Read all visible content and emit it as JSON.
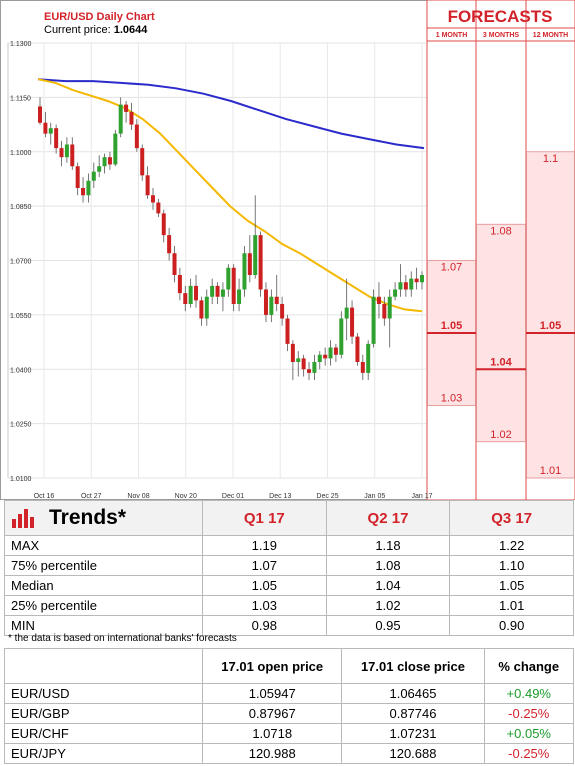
{
  "chart_data": {
    "type": "candlestick",
    "title": "EUR/USD Daily Chart",
    "current_price_label": "Current price:",
    "current_price": "1.0644",
    "y_ticks": [
      "1.1300",
      "1.1150",
      "1.1000",
      "1.0850",
      "1.0700",
      "1.0550",
      "1.0400",
      "1.0250",
      "1.0100"
    ],
    "y_tick_values": [
      1.13,
      1.115,
      1.1,
      1.085,
      1.07,
      1.055,
      1.04,
      1.025,
      1.01
    ],
    "ylim": [
      1.01,
      1.13
    ],
    "x_ticks": [
      "Oct 16",
      "Oct 27",
      "Nov 08",
      "Nov 20",
      "Dec 01",
      "Dec 13",
      "Dec 25",
      "Jan 05",
      "Jan 17"
    ],
    "candles": [
      [
        1.1125,
        1.115,
        1.1075,
        1.108
      ],
      [
        1.108,
        1.111,
        1.104,
        1.105
      ],
      [
        1.105,
        1.108,
        1.102,
        1.1065
      ],
      [
        1.1065,
        1.1075,
        1.0995,
        1.101
      ],
      [
        1.101,
        1.103,
        1.096,
        1.0985
      ],
      [
        1.0985,
        1.104,
        1.097,
        1.102
      ],
      [
        1.102,
        1.104,
        1.095,
        1.096
      ],
      [
        1.096,
        1.097,
        1.088,
        1.09
      ],
      [
        1.09,
        1.093,
        1.086,
        1.088
      ],
      [
        1.088,
        1.094,
        1.086,
        1.092
      ],
      [
        1.092,
        1.097,
        1.09,
        1.0945
      ],
      [
        1.0945,
        1.099,
        1.093,
        1.096
      ],
      [
        1.096,
        1.0995,
        1.094,
        1.0985
      ],
      [
        1.0985,
        1.1,
        1.095,
        1.0965
      ],
      [
        1.0965,
        1.106,
        1.096,
        1.105
      ],
      [
        1.105,
        1.115,
        1.104,
        1.113
      ],
      [
        1.113,
        1.114,
        1.108,
        1.111
      ],
      [
        1.111,
        1.1135,
        1.106,
        1.1075
      ],
      [
        1.1075,
        1.109,
        1.1,
        1.101
      ],
      [
        1.101,
        1.102,
        1.092,
        1.0935
      ],
      [
        1.0935,
        1.096,
        1.087,
        1.088
      ],
      [
        1.088,
        1.09,
        1.084,
        1.086
      ],
      [
        1.086,
        1.087,
        1.082,
        1.083
      ],
      [
        1.083,
        1.084,
        1.075,
        1.077
      ],
      [
        1.077,
        1.079,
        1.07,
        1.072
      ],
      [
        1.072,
        1.074,
        1.064,
        1.066
      ],
      [
        1.066,
        1.068,
        1.059,
        1.061
      ],
      [
        1.061,
        1.063,
        1.056,
        1.058
      ],
      [
        1.058,
        1.065,
        1.057,
        1.063
      ],
      [
        1.063,
        1.066,
        1.057,
        1.059
      ],
      [
        1.059,
        1.06,
        1.052,
        1.054
      ],
      [
        1.054,
        1.062,
        1.052,
        1.06
      ],
      [
        1.06,
        1.065,
        1.058,
        1.063
      ],
      [
        1.063,
        1.064,
        1.058,
        1.06
      ],
      [
        1.06,
        1.064,
        1.056,
        1.062
      ],
      [
        1.062,
        1.069,
        1.06,
        1.068
      ],
      [
        1.068,
        1.069,
        1.056,
        1.058
      ],
      [
        1.058,
        1.065,
        1.056,
        1.062
      ],
      [
        1.062,
        1.074,
        1.06,
        1.072
      ],
      [
        1.072,
        1.077,
        1.064,
        1.066
      ],
      [
        1.066,
        1.088,
        1.065,
        1.077
      ],
      [
        1.077,
        1.078,
        1.06,
        1.062
      ],
      [
        1.062,
        1.064,
        1.053,
        1.055
      ],
      [
        1.055,
        1.062,
        1.053,
        1.06
      ],
      [
        1.06,
        1.066,
        1.056,
        1.058
      ],
      [
        1.058,
        1.06,
        1.052,
        1.054
      ],
      [
        1.054,
        1.055,
        1.045,
        1.047
      ],
      [
        1.047,
        1.048,
        1.037,
        1.042
      ],
      [
        1.042,
        1.045,
        1.038,
        1.043
      ],
      [
        1.043,
        1.044,
        1.038,
        1.04
      ],
      [
        1.04,
        1.042,
        1.037,
        1.039
      ],
      [
        1.039,
        1.044,
        1.037,
        1.042
      ],
      [
        1.042,
        1.045,
        1.04,
        1.044
      ],
      [
        1.044,
        1.046,
        1.041,
        1.043
      ],
      [
        1.043,
        1.048,
        1.041,
        1.046
      ],
      [
        1.046,
        1.047,
        1.042,
        1.044
      ],
      [
        1.044,
        1.056,
        1.043,
        1.054
      ],
      [
        1.054,
        1.065,
        1.048,
        1.057
      ],
      [
        1.057,
        1.059,
        1.047,
        1.049
      ],
      [
        1.049,
        1.05,
        1.041,
        1.042
      ],
      [
        1.042,
        1.044,
        1.037,
        1.039
      ],
      [
        1.039,
        1.048,
        1.037,
        1.047
      ],
      [
        1.047,
        1.062,
        1.046,
        1.06
      ],
      [
        1.06,
        1.064,
        1.054,
        1.058
      ],
      [
        1.058,
        1.06,
        1.052,
        1.054
      ],
      [
        1.054,
        1.062,
        1.046,
        1.06
      ],
      [
        1.06,
        1.064,
        1.059,
        1.062
      ],
      [
        1.062,
        1.069,
        1.06,
        1.064
      ],
      [
        1.064,
        1.066,
        1.06,
        1.062
      ],
      [
        1.062,
        1.067,
        1.06,
        1.065
      ],
      [
        1.065,
        1.068,
        1.062,
        1.064
      ],
      [
        1.064,
        1.067,
        1.062,
        1.066
      ]
    ],
    "series": [
      {
        "name": "",
        "color": "#2b2bcc",
        "values": [
          1.12,
          1.1195,
          1.1195,
          1.119,
          1.1185,
          1.1175,
          1.116,
          1.114,
          1.1115,
          1.109,
          1.107,
          1.105,
          1.1035,
          1.102,
          1.101
        ]
      },
      {
        "name": "",
        "color": "#f5b800",
        "values": [
          1.12,
          1.119,
          1.117,
          1.1155,
          1.114,
          1.112,
          1.109,
          1.105,
          1.1,
          1.095,
          1.09,
          1.085,
          1.081,
          1.078,
          1.0745,
          1.072,
          1.069,
          1.066,
          1.063,
          1.06,
          1.058,
          1.0565,
          1.056
        ]
      }
    ]
  },
  "forecasts": {
    "title": "FORECASTS",
    "columns": [
      "1 MONTH",
      "3 MONTHS",
      "12 MONTH"
    ],
    "levels": [
      {
        "high": "1.07",
        "median": "1.05",
        "low": "1.03",
        "high_v": 1.07,
        "median_v": 1.05,
        "low_v": 1.03
      },
      {
        "high": "1.08",
        "median": "1.04",
        "low": "1.02",
        "high_v": 1.08,
        "median_v": 1.04,
        "low_v": 1.02
      },
      {
        "high": "1.1",
        "median": "1.05",
        "low": "1.01",
        "high_v": 1.1,
        "median_v": 1.05,
        "low_v": 1.01
      }
    ]
  },
  "trends": {
    "title": "Trends*",
    "quarters": [
      "Q1 17",
      "Q2 17",
      "Q3 17"
    ],
    "rows": [
      {
        "label": "MAX",
        "v": [
          "1.19",
          "1.18",
          "1.22"
        ]
      },
      {
        "label": "75% percentile",
        "v": [
          "1.07",
          "1.08",
          "1.10"
        ]
      },
      {
        "label": "Median",
        "v": [
          "1.05",
          "1.04",
          "1.05"
        ]
      },
      {
        "label": "25% percentile",
        "v": [
          "1.03",
          "1.02",
          "1.01"
        ]
      },
      {
        "label": "MIN",
        "v": [
          "0.98",
          "0.95",
          "0.90"
        ]
      }
    ],
    "note": "* the data is based on international banks' forecasts"
  },
  "prices": {
    "headers": [
      "17.01 open price",
      "17.01 close price",
      "% change"
    ],
    "rows": [
      {
        "pair": "EUR/USD",
        "open": "1.05947",
        "close": "1.06465",
        "change": "+0.49%",
        "dir": "pos"
      },
      {
        "pair": "EUR/GBP",
        "open": "0.87967",
        "close": "0.87746",
        "change": "-0.25%",
        "dir": "neg"
      },
      {
        "pair": "EUR/CHF",
        "open": "1.0718",
        "close": "1.07231",
        "change": "+0.05%",
        "dir": "pos"
      },
      {
        "pair": "EUR/JPY",
        "open": "120.988",
        "close": "120.688",
        "change": "-0.25%",
        "dir": "neg"
      }
    ]
  },
  "colors": {
    "up": "#2ea12e",
    "down": "#cc1f1f",
    "accent": "#d2232a",
    "forecast_fill": "#fde3e3"
  }
}
